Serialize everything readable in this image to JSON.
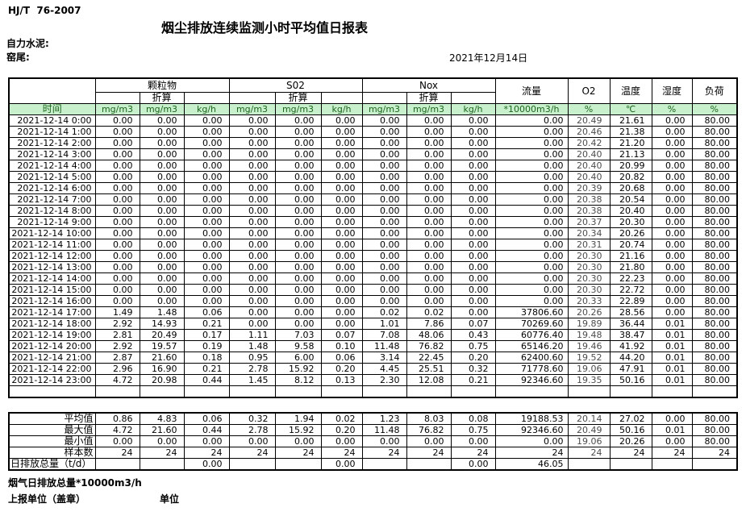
{
  "page": {
    "standard": "HJ/T  76-2007",
    "title": "烟尘排放连续监测小时平均值日报表",
    "company": "自力水泥:",
    "location": "窑尾:",
    "date": "2021年12月14日"
  },
  "colors": {
    "header_green_bg": "#c9f0cd",
    "header_green_text": "#1d651d",
    "o2_value_text": "#4c4c4c",
    "border": "#000000"
  },
  "table": {
    "time_header": "时间",
    "groups": [
      {
        "label": "颗粒物",
        "sub": "折算",
        "units": [
          "mg/m3",
          "mg/m3",
          "kg/h"
        ]
      },
      {
        "label": "S02",
        "sub": "折算",
        "units": [
          "mg/m3",
          "mg/m3",
          "kg/h"
        ]
      },
      {
        "label": "Nox",
        "sub": "折算",
        "units": [
          "mg/m3",
          "mg/m3",
          "kg/h"
        ]
      }
    ],
    "single_cols": [
      {
        "label": "流量",
        "unit": "*10000m3/h"
      },
      {
        "label": "O2",
        "unit": "%"
      },
      {
        "label": "温度",
        "unit": "℃"
      },
      {
        "label": "湿度",
        "unit": "%"
      },
      {
        "label": "负荷",
        "unit": "%"
      }
    ],
    "rows": [
      [
        "2021-12-14 0:00",
        "0.00",
        "0.00",
        "0.00",
        "0.00",
        "0.00",
        "0.00",
        "0.00",
        "0.00",
        "0.00",
        "0.00",
        "20.49",
        "21.61",
        "0.00",
        "80.00"
      ],
      [
        "2021-12-14 1:00",
        "0.00",
        "0.00",
        "0.00",
        "0.00",
        "0.00",
        "0.00",
        "0.00",
        "0.00",
        "0.00",
        "0.00",
        "20.46",
        "21.38",
        "0.00",
        "80.00"
      ],
      [
        "2021-12-14 2:00",
        "0.00",
        "0.00",
        "0.00",
        "0.00",
        "0.00",
        "0.00",
        "0.00",
        "0.00",
        "0.00",
        "0.00",
        "20.42",
        "21.20",
        "0.00",
        "80.00"
      ],
      [
        "2021-12-14 3:00",
        "0.00",
        "0.00",
        "0.00",
        "0.00",
        "0.00",
        "0.00",
        "0.00",
        "0.00",
        "0.00",
        "0.00",
        "20.40",
        "21.13",
        "0.00",
        "80.00"
      ],
      [
        "2021-12-14 4:00",
        "0.00",
        "0.00",
        "0.00",
        "0.00",
        "0.00",
        "0.00",
        "0.00",
        "0.00",
        "0.00",
        "0.00",
        "20.40",
        "20.99",
        "0.00",
        "80.00"
      ],
      [
        "2021-12-14 5:00",
        "0.00",
        "0.00",
        "0.00",
        "0.00",
        "0.00",
        "0.00",
        "0.00",
        "0.00",
        "0.00",
        "0.00",
        "20.40",
        "20.82",
        "0.00",
        "80.00"
      ],
      [
        "2021-12-14 6:00",
        "0.00",
        "0.00",
        "0.00",
        "0.00",
        "0.00",
        "0.00",
        "0.00",
        "0.00",
        "0.00",
        "0.00",
        "20.39",
        "20.68",
        "0.00",
        "80.00"
      ],
      [
        "2021-12-14 7:00",
        "0.00",
        "0.00",
        "0.00",
        "0.00",
        "0.00",
        "0.00",
        "0.00",
        "0.00",
        "0.00",
        "0.00",
        "20.38",
        "20.54",
        "0.00",
        "80.00"
      ],
      [
        "2021-12-14 8:00",
        "0.00",
        "0.00",
        "0.00",
        "0.00",
        "0.00",
        "0.00",
        "0.00",
        "0.00",
        "0.00",
        "0.00",
        "20.38",
        "20.40",
        "0.00",
        "80.00"
      ],
      [
        "2021-12-14 9:00",
        "0.00",
        "0.00",
        "0.00",
        "0.00",
        "0.00",
        "0.00",
        "0.00",
        "0.00",
        "0.00",
        "0.00",
        "20.37",
        "20.30",
        "0.00",
        "80.00"
      ],
      [
        "2021-12-14 10:00",
        "0.00",
        "0.00",
        "0.00",
        "0.00",
        "0.00",
        "0.00",
        "0.00",
        "0.00",
        "0.00",
        "0.00",
        "20.34",
        "20.26",
        "0.00",
        "80.00"
      ],
      [
        "2021-12-14 11:00",
        "0.00",
        "0.00",
        "0.00",
        "0.00",
        "0.00",
        "0.00",
        "0.00",
        "0.00",
        "0.00",
        "0.00",
        "20.31",
        "20.74",
        "0.00",
        "80.00"
      ],
      [
        "2021-12-14 12:00",
        "0.00",
        "0.00",
        "0.00",
        "0.00",
        "0.00",
        "0.00",
        "0.00",
        "0.00",
        "0.00",
        "0.00",
        "20.30",
        "21.16",
        "0.00",
        "80.00"
      ],
      [
        "2021-12-14 13:00",
        "0.00",
        "0.00",
        "0.00",
        "0.00",
        "0.00",
        "0.00",
        "0.00",
        "0.00",
        "0.00",
        "0.00",
        "20.30",
        "21.80",
        "0.00",
        "80.00"
      ],
      [
        "2021-12-14 14:00",
        "0.00",
        "0.00",
        "0.00",
        "0.00",
        "0.00",
        "0.00",
        "0.00",
        "0.00",
        "0.00",
        "0.00",
        "20.30",
        "22.23",
        "0.00",
        "80.00"
      ],
      [
        "2021-12-14 15:00",
        "0.00",
        "0.00",
        "0.00",
        "0.00",
        "0.00",
        "0.00",
        "0.00",
        "0.00",
        "0.00",
        "0.00",
        "20.30",
        "22.72",
        "0.00",
        "80.00"
      ],
      [
        "2021-12-14 16:00",
        "0.00",
        "0.00",
        "0.00",
        "0.00",
        "0.00",
        "0.00",
        "0.00",
        "0.00",
        "0.00",
        "0.00",
        "20.33",
        "22.89",
        "0.00",
        "80.00"
      ],
      [
        "2021-12-14 17:00",
        "1.49",
        "1.48",
        "0.06",
        "0.00",
        "0.00",
        "0.00",
        "0.02",
        "0.02",
        "0.00",
        "37806.60",
        "20.26",
        "28.56",
        "0.00",
        "80.00"
      ],
      [
        "2021-12-14 18:00",
        "2.92",
        "14.93",
        "0.21",
        "0.00",
        "0.00",
        "0.00",
        "1.01",
        "7.86",
        "0.07",
        "70269.60",
        "19.89",
        "36.44",
        "0.01",
        "80.00"
      ],
      [
        "2021-12-14 19:00",
        "2.81",
        "20.49",
        "0.17",
        "1.11",
        "7.03",
        "0.07",
        "7.08",
        "48.06",
        "0.43",
        "60776.40",
        "19.48",
        "38.47",
        "0.01",
        "80.00"
      ],
      [
        "2021-12-14 20:00",
        "2.92",
        "19.57",
        "0.19",
        "1.48",
        "9.58",
        "0.10",
        "11.48",
        "76.82",
        "0.75",
        "65146.20",
        "19.46",
        "41.92",
        "0.01",
        "80.00"
      ],
      [
        "2021-12-14 21:00",
        "2.87",
        "21.60",
        "0.18",
        "0.95",
        "6.00",
        "0.06",
        "3.14",
        "22.45",
        "0.20",
        "62400.60",
        "19.52",
        "44.20",
        "0.01",
        "80.00"
      ],
      [
        "2021-12-14 22:00",
        "2.96",
        "16.90",
        "0.21",
        "2.78",
        "15.92",
        "0.20",
        "4.45",
        "25.51",
        "0.32",
        "71778.60",
        "19.06",
        "47.91",
        "0.01",
        "80.00"
      ],
      [
        "2021-12-14 23:00",
        "4.72",
        "20.98",
        "0.44",
        "1.45",
        "8.12",
        "0.13",
        "2.30",
        "12.08",
        "0.21",
        "92346.60",
        "19.35",
        "50.16",
        "0.01",
        "80.00"
      ]
    ]
  },
  "summary": {
    "rows": [
      {
        "label": "平均值",
        "align": "right",
        "values": [
          "0.86",
          "4.83",
          "0.06",
          "0.32",
          "1.94",
          "0.02",
          "1.23",
          "8.03",
          "0.08",
          "19188.53",
          "20.14",
          "27.02",
          "0.00",
          "80.00"
        ]
      },
      {
        "label": "最大值",
        "align": "right",
        "values": [
          "4.72",
          "21.60",
          "0.44",
          "2.78",
          "15.92",
          "0.20",
          "11.48",
          "76.82",
          "0.75",
          "92346.60",
          "20.49",
          "50.16",
          "0.01",
          "80.00"
        ]
      },
      {
        "label": "最小值",
        "align": "right",
        "values": [
          "0.00",
          "0.00",
          "0.00",
          "0.00",
          "0.00",
          "0.00",
          "0.00",
          "0.00",
          "0.00",
          "0.00",
          "19.06",
          "20.26",
          "0.00",
          "80.00"
        ]
      },
      {
        "label": "样本数",
        "align": "right",
        "values": [
          "24",
          "24",
          "24",
          "24",
          "24",
          "24",
          "24",
          "24",
          "24",
          "24",
          "24",
          "24",
          "24",
          "24"
        ]
      },
      {
        "label": "日排放总量（t/d）",
        "align": "left",
        "values": [
          "",
          "",
          "0.00",
          "",
          "",
          "0.00",
          "",
          "",
          "0.00",
          "46.05",
          "",
          "",
          "",
          ""
        ]
      }
    ]
  },
  "footer": {
    "flue_total": "烟气日排放总量*10000m3/h",
    "report_unit": "上报单位（盖章）",
    "unit_label": "单位"
  }
}
